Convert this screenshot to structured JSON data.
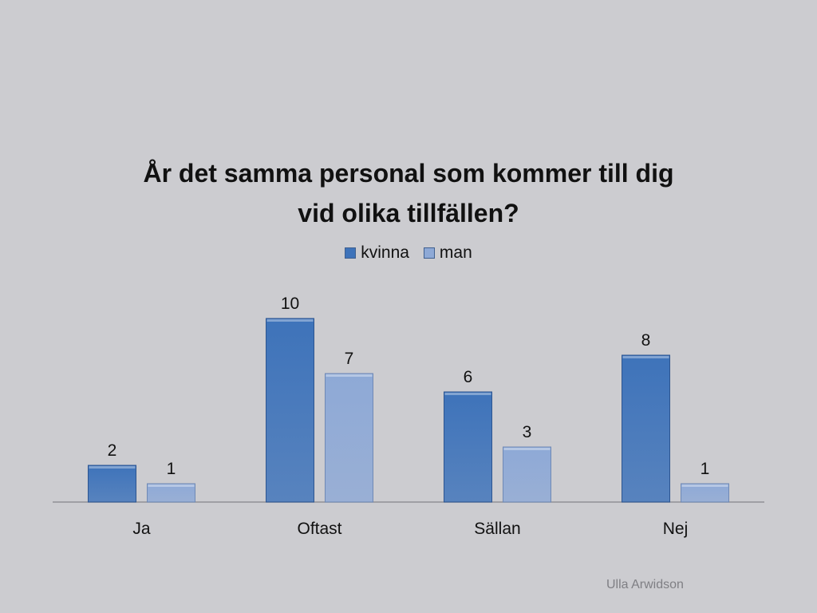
{
  "colors": {
    "kvinna": "#3e73ba",
    "man": "#8ea9d6",
    "background": "#ccccd0",
    "axis": "#909096"
  },
  "chart_data": {
    "type": "bar",
    "title": "År det samma personal som kommer till dig vid olika tillfällen?",
    "title_lines": [
      "År det samma personal som kommer till dig",
      "vid olika tillfällen?"
    ],
    "categories": [
      "Ja",
      "Oftast",
      "Sällan",
      "Nej"
    ],
    "series": [
      {
        "name": "kvinna",
        "values": [
          2,
          10,
          6,
          8
        ]
      },
      {
        "name": "man",
        "values": [
          1,
          7,
          3,
          1
        ]
      }
    ],
    "xlabel": "",
    "ylabel": "",
    "ylim": [
      0,
      10
    ],
    "grid": false,
    "legend_position": "top",
    "data_labels": true
  },
  "footer": {
    "author": "Ulla Arwidson"
  }
}
